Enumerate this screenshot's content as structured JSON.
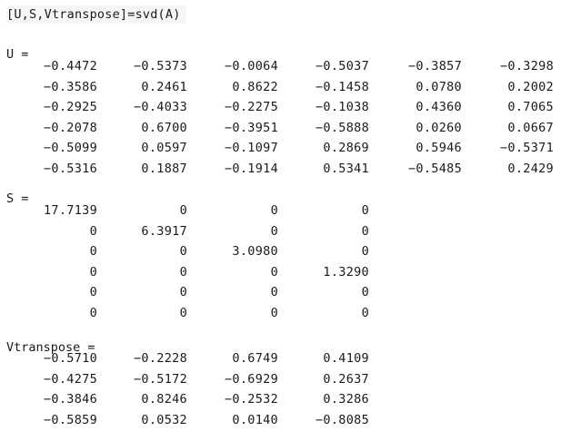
{
  "command": "[U,S,Vtranspose]=svd(A)",
  "outputs": [
    {
      "label": "U =",
      "rows": [
        [
          "−0.4472",
          "−0.5373",
          "−0.0064",
          "−0.5037",
          "−0.3857",
          "−0.3298"
        ],
        [
          "−0.3586",
          "0.2461",
          "0.8622",
          "−0.1458",
          "0.0780",
          "0.2002"
        ],
        [
          "−0.2925",
          "−0.4033",
          "−0.2275",
          "−0.1038",
          "0.4360",
          "0.7065"
        ],
        [
          "−0.2078",
          "0.6700",
          "−0.3951",
          "−0.5888",
          "0.0260",
          "0.0667"
        ],
        [
          "−0.5099",
          "0.0597",
          "−0.1097",
          "0.2869",
          "0.5946",
          "−0.5371"
        ],
        [
          "−0.5316",
          "0.1887",
          "−0.1914",
          "0.5341",
          "−0.5485",
          "0.2429"
        ]
      ]
    },
    {
      "label": "S =",
      "rows": [
        [
          "17.7139",
          "0",
          "0",
          "0"
        ],
        [
          "0",
          "6.3917",
          "0",
          "0"
        ],
        [
          "0",
          "0",
          "3.0980",
          "0"
        ],
        [
          "0",
          "0",
          "0",
          "1.3290"
        ],
        [
          "0",
          "0",
          "0",
          "0"
        ],
        [
          "0",
          "0",
          "0",
          "0"
        ]
      ]
    },
    {
      "label": "Vtranspose =",
      "rows": [
        [
          "−0.5710",
          "−0.2228",
          "0.6749",
          "0.4109"
        ],
        [
          "−0.4275",
          "−0.5172",
          "−0.6929",
          "0.2637"
        ],
        [
          "−0.3846",
          "0.8246",
          "−0.2532",
          "0.3286"
        ],
        [
          "−0.5859",
          "0.0532",
          "0.0140",
          "−0.8085"
        ]
      ]
    }
  ]
}
